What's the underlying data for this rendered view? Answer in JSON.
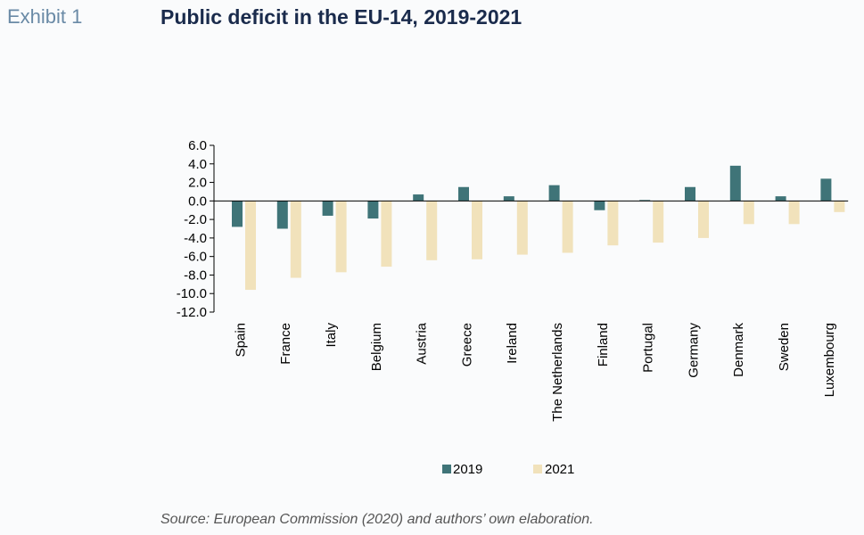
{
  "header": {
    "exhibit_label": "Exhibit 1",
    "title": "Public deficit in the EU-14, 2019-2021"
  },
  "footer": {
    "source": "Source: European Commission (2020) and authors’ own elaboration."
  },
  "colors": {
    "series_2019": "#3f7478",
    "series_2021": "#f1e2bb"
  },
  "chart_data": {
    "type": "bar",
    "categories": [
      "Spain",
      "France",
      "Italy",
      "Belgium",
      "Austria",
      "Greece",
      "Ireland",
      "The Netherlands",
      "Finland",
      "Portugal",
      "Germany",
      "Denmark",
      "Sweden",
      "Luxembourg"
    ],
    "series": [
      {
        "name": "2019",
        "values": [
          -2.8,
          -3.0,
          -1.6,
          -1.9,
          0.7,
          1.5,
          0.5,
          1.7,
          -1.0,
          0.1,
          1.5,
          3.8,
          0.5,
          2.4
        ]
      },
      {
        "name": "2021",
        "values": [
          -9.6,
          -8.3,
          -7.7,
          -7.1,
          -6.4,
          -6.3,
          -5.8,
          -5.6,
          -4.8,
          -4.5,
          -4.0,
          -2.5,
          -2.5,
          -1.2
        ]
      }
    ],
    "ylim": [
      -12.0,
      6.0
    ],
    "yticks": [
      "6.0",
      "4.0",
      "2.0",
      "0.0",
      "-2.0",
      "-4.0",
      "-6.0",
      "-8.0",
      "-10.0",
      "-12.0"
    ],
    "legend_position": "bottom",
    "grid": false
  }
}
